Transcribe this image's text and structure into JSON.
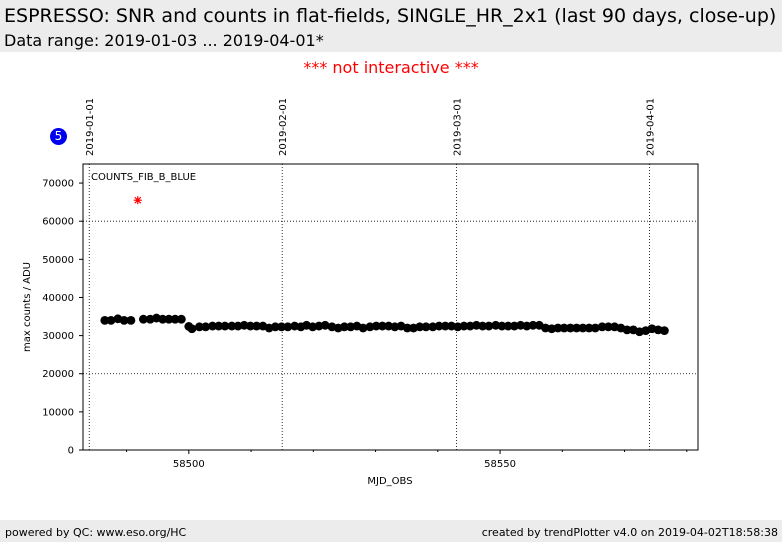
{
  "header": {
    "title": "ESPRESSO: SNR and counts in flat-fields, SINGLE_HR_2x1 (last 90 days, close-up)",
    "subtitle": "Data range: 2019-01-03 ... 2019-04-01*"
  },
  "notice": "*** not interactive ***",
  "badge": "5",
  "footer": {
    "left": "powered by QC: www.eso.org/HC",
    "right": "created by trendPlotter v4.0 on 2019-04-02T18:58:38"
  },
  "colors": {
    "points": "#000000",
    "outlier": "#ff0000",
    "notice": "#ff0000",
    "badge": "#0000ee",
    "header_bg": "#ececec"
  },
  "chart_data": {
    "type": "scatter",
    "series_label": "COUNTS_FIB_B_BLUE",
    "xlabel": "MJD_OBS",
    "ylabel": "max counts / ADU",
    "xlim": [
      58483.0,
      58581.8
    ],
    "ylim": [
      0,
      75000
    ],
    "x_ticks": [
      58500,
      58550
    ],
    "x_tick_labels": [
      "58500",
      "58550"
    ],
    "x_minor_ticks": [
      58490,
      58510,
      58520,
      58530,
      58540,
      58560,
      58570,
      58580
    ],
    "y_ticks": [
      0,
      10000,
      20000,
      30000,
      40000,
      50000,
      60000,
      70000
    ],
    "y_tick_labels": [
      "0",
      "10000",
      "20000",
      "30000",
      "40000",
      "50000",
      "60000",
      "70000"
    ],
    "grid_y": [
      20000,
      60000
    ],
    "top_date_ticks": [
      {
        "x": 58484,
        "label": "2019-01-01"
      },
      {
        "x": 58515,
        "label": "2019-02-01"
      },
      {
        "x": 58543,
        "label": "2019-03-01"
      },
      {
        "x": 58574,
        "label": "2019-04-01"
      }
    ],
    "grid": true,
    "points": [
      {
        "x": 58486.5,
        "y": 34000
      },
      {
        "x": 58487.5,
        "y": 34000
      },
      {
        "x": 58488.6,
        "y": 34400
      },
      {
        "x": 58489.6,
        "y": 34000
      },
      {
        "x": 58490.7,
        "y": 34000
      },
      {
        "x": 58492.7,
        "y": 34300
      },
      {
        "x": 58493.8,
        "y": 34300
      },
      {
        "x": 58494.8,
        "y": 34600
      },
      {
        "x": 58495.8,
        "y": 34300
      },
      {
        "x": 58496.8,
        "y": 34300
      },
      {
        "x": 58497.8,
        "y": 34300
      },
      {
        "x": 58498.8,
        "y": 34300
      },
      {
        "x": 58500.0,
        "y": 32400
      },
      {
        "x": 58500.5,
        "y": 31800
      },
      {
        "x": 58501.7,
        "y": 32300
      },
      {
        "x": 58502.7,
        "y": 32300
      },
      {
        "x": 58503.8,
        "y": 32500
      },
      {
        "x": 58504.8,
        "y": 32500
      },
      {
        "x": 58505.8,
        "y": 32500
      },
      {
        "x": 58506.9,
        "y": 32500
      },
      {
        "x": 58507.9,
        "y": 32500
      },
      {
        "x": 58508.9,
        "y": 32700
      },
      {
        "x": 58509.9,
        "y": 32500
      },
      {
        "x": 58510.9,
        "y": 32500
      },
      {
        "x": 58511.9,
        "y": 32500
      },
      {
        "x": 58512.9,
        "y": 32000
      },
      {
        "x": 58513.9,
        "y": 32300
      },
      {
        "x": 58514.9,
        "y": 32300
      },
      {
        "x": 58515.9,
        "y": 32300
      },
      {
        "x": 58517.0,
        "y": 32500
      },
      {
        "x": 58518.0,
        "y": 32300
      },
      {
        "x": 58518.9,
        "y": 32700
      },
      {
        "x": 58519.9,
        "y": 32300
      },
      {
        "x": 58520.9,
        "y": 32500
      },
      {
        "x": 58521.9,
        "y": 32700
      },
      {
        "x": 58523.0,
        "y": 32300
      },
      {
        "x": 58524.0,
        "y": 32000
      },
      {
        "x": 58525.0,
        "y": 32300
      },
      {
        "x": 58526.0,
        "y": 32300
      },
      {
        "x": 58527.0,
        "y": 32500
      },
      {
        "x": 58528.0,
        "y": 32000
      },
      {
        "x": 58529.1,
        "y": 32300
      },
      {
        "x": 58530.1,
        "y": 32500
      },
      {
        "x": 58531.1,
        "y": 32500
      },
      {
        "x": 58532.1,
        "y": 32500
      },
      {
        "x": 58533.1,
        "y": 32300
      },
      {
        "x": 58534.1,
        "y": 32500
      },
      {
        "x": 58535.1,
        "y": 32000
      },
      {
        "x": 58536.1,
        "y": 32000
      },
      {
        "x": 58537.1,
        "y": 32300
      },
      {
        "x": 58538.1,
        "y": 32300
      },
      {
        "x": 58539.2,
        "y": 32300
      },
      {
        "x": 58540.2,
        "y": 32500
      },
      {
        "x": 58541.2,
        "y": 32500
      },
      {
        "x": 58542.2,
        "y": 32500
      },
      {
        "x": 58543.2,
        "y": 32300
      },
      {
        "x": 58544.2,
        "y": 32500
      },
      {
        "x": 58545.2,
        "y": 32500
      },
      {
        "x": 58546.2,
        "y": 32700
      },
      {
        "x": 58547.2,
        "y": 32500
      },
      {
        "x": 58548.2,
        "y": 32500
      },
      {
        "x": 58549.3,
        "y": 32700
      },
      {
        "x": 58550.3,
        "y": 32500
      },
      {
        "x": 58551.3,
        "y": 32500
      },
      {
        "x": 58552.3,
        "y": 32500
      },
      {
        "x": 58553.3,
        "y": 32700
      },
      {
        "x": 58554.3,
        "y": 32500
      },
      {
        "x": 58555.3,
        "y": 32700
      },
      {
        "x": 58556.3,
        "y": 32700
      },
      {
        "x": 58557.3,
        "y": 32000
      },
      {
        "x": 58558.3,
        "y": 31800
      },
      {
        "x": 58559.3,
        "y": 32000
      },
      {
        "x": 58560.3,
        "y": 32000
      },
      {
        "x": 58561.3,
        "y": 32000
      },
      {
        "x": 58562.3,
        "y": 32000
      },
      {
        "x": 58563.3,
        "y": 32000
      },
      {
        "x": 58564.3,
        "y": 32000
      },
      {
        "x": 58565.3,
        "y": 32000
      },
      {
        "x": 58566.4,
        "y": 32300
      },
      {
        "x": 58567.4,
        "y": 32300
      },
      {
        "x": 58568.4,
        "y": 32300
      },
      {
        "x": 58569.4,
        "y": 32000
      },
      {
        "x": 58570.4,
        "y": 31500
      },
      {
        "x": 58571.4,
        "y": 31500
      },
      {
        "x": 58572.4,
        "y": 31000
      },
      {
        "x": 58573.4,
        "y": 31300
      },
      {
        "x": 58574.4,
        "y": 31800
      },
      {
        "x": 58575.4,
        "y": 31500
      },
      {
        "x": 58576.4,
        "y": 31300
      }
    ],
    "outliers": [
      {
        "x": 58491.8,
        "y": 65500
      }
    ]
  }
}
